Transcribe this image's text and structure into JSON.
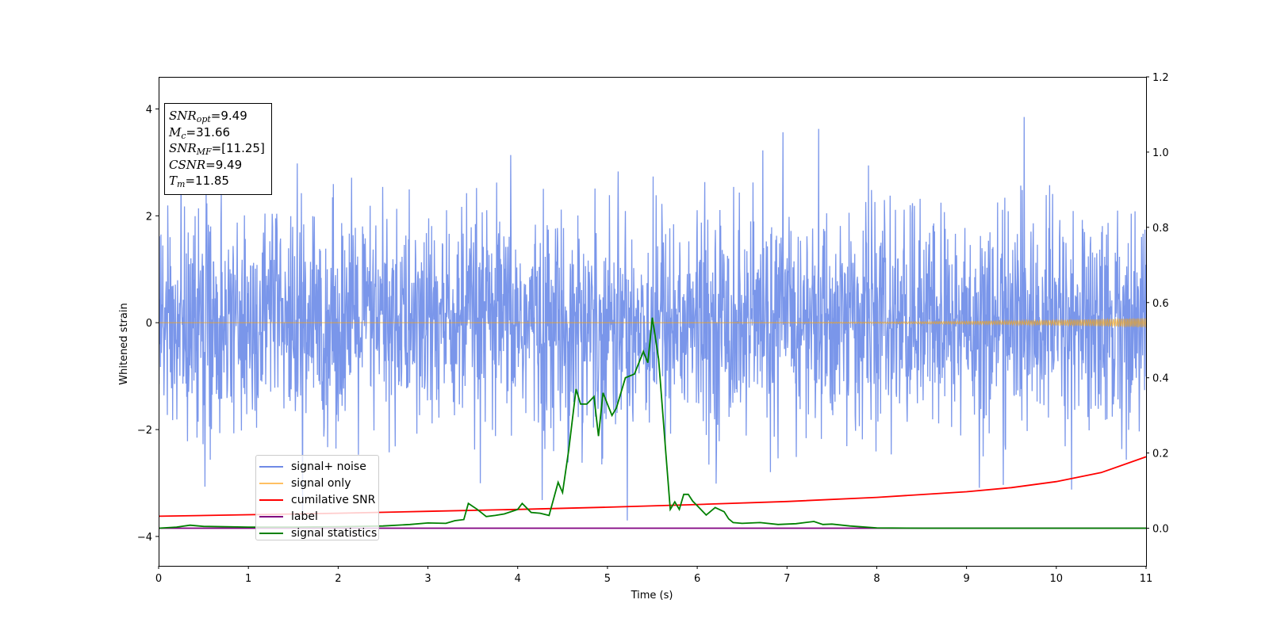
{
  "chart_data": {
    "type": "line",
    "xlabel": "Time (s)",
    "ylabel": "Whitened strain",
    "xlim": [
      0,
      11
    ],
    "ylim_left": [
      -4.55,
      4.6
    ],
    "ylim_right": [
      -0.1,
      1.2
    ],
    "x_ticks": [
      "0",
      "1",
      "2",
      "3",
      "4",
      "5",
      "6",
      "7",
      "8",
      "9",
      "10",
      "11"
    ],
    "y_left_ticks": [
      "−4",
      "−2",
      "0",
      "2",
      "4"
    ],
    "y_right_ticks": [
      "0.0",
      "0.2",
      "0.4",
      "0.6",
      "0.8",
      "1.0",
      "1.2"
    ],
    "colors": {
      "signal_noise": "#4169e1",
      "signal_only": "#ffa500",
      "cumulative": "#ff0000",
      "label": "#800080",
      "statistics": "#008000"
    },
    "legend": {
      "placement": "lower-left",
      "entries": [
        {
          "text": "signal+ noise",
          "color": "#6f8ae6"
        },
        {
          "text": "signal only",
          "color": "#ffc062"
        },
        {
          "text": "cumilative SNR",
          "color": "#ff0000"
        },
        {
          "text": "label",
          "color": "#800080"
        },
        {
          "text": "signal statistics",
          "color": "#008000"
        }
      ]
    },
    "info_box": {
      "snr_opt": {
        "name": "SNR",
        "sub": "opt",
        "value": "=9.49"
      },
      "mc": {
        "name": "M",
        "sub": "c",
        "value": "=31.66"
      },
      "snr_mf": {
        "name": "SNR",
        "sub": "MF",
        "value": "=[11.25]"
      },
      "csnr": {
        "name": "CSNR",
        "value": "=9.49"
      },
      "tm": {
        "name": "T",
        "sub": "m",
        "value": "=11.85"
      }
    },
    "series": [
      {
        "name": "signal+ noise",
        "axis": "left",
        "description_kind": "noise",
        "band_mean": 0.0,
        "band_sigma": 1.0,
        "peak_max": 3.85,
        "peak_min": -3.7
      },
      {
        "name": "signal only",
        "axis": "left",
        "description_kind": "chirp",
        "amplitude_end": 0.09
      },
      {
        "name": "cumilative SNR",
        "axis": "right",
        "x": [
          0,
          1,
          2,
          3,
          4,
          5,
          6,
          7,
          8,
          9,
          9.5,
          10,
          10.5,
          11
        ],
        "y": [
          0.032,
          0.036,
          0.04,
          0.045,
          0.05,
          0.056,
          0.063,
          0.071,
          0.082,
          0.097,
          0.108,
          0.124,
          0.148,
          0.19
        ]
      },
      {
        "name": "label",
        "axis": "right",
        "x": [
          0,
          11
        ],
        "y": [
          0.0,
          0.0
        ]
      },
      {
        "name": "signal statistics",
        "axis": "right",
        "x": [
          0,
          0.2,
          0.35,
          0.5,
          1.0,
          1.5,
          2.0,
          2.5,
          2.8,
          3.0,
          3.2,
          3.3,
          3.4,
          3.45,
          3.55,
          3.65,
          3.75,
          3.85,
          4.0,
          4.05,
          4.15,
          4.25,
          4.35,
          4.45,
          4.5,
          4.57,
          4.65,
          4.7,
          4.77,
          4.85,
          4.9,
          4.95,
          5.0,
          5.05,
          5.1,
          5.2,
          5.3,
          5.4,
          5.45,
          5.5,
          5.57,
          5.65,
          5.7,
          5.75,
          5.8,
          5.85,
          5.9,
          5.95,
          6.0,
          6.1,
          6.2,
          6.3,
          6.35,
          6.4,
          6.5,
          6.7,
          6.9,
          7.1,
          7.3,
          7.4,
          7.5,
          7.7,
          8.0,
          8.5,
          11
        ],
        "y": [
          0.0,
          0.003,
          0.008,
          0.005,
          0.003,
          0.003,
          0.004,
          0.006,
          0.01,
          0.014,
          0.013,
          0.02,
          0.023,
          0.066,
          0.05,
          0.031,
          0.034,
          0.038,
          0.05,
          0.066,
          0.042,
          0.04,
          0.034,
          0.122,
          0.095,
          0.21,
          0.37,
          0.33,
          0.33,
          0.35,
          0.245,
          0.36,
          0.33,
          0.3,
          0.32,
          0.4,
          0.41,
          0.47,
          0.44,
          0.56,
          0.45,
          0.2,
          0.05,
          0.07,
          0.05,
          0.09,
          0.09,
          0.072,
          0.06,
          0.035,
          0.055,
          0.044,
          0.025,
          0.015,
          0.013,
          0.015,
          0.01,
          0.012,
          0.018,
          0.01,
          0.011,
          0.006,
          0.001,
          0.0,
          0.0
        ]
      }
    ]
  }
}
